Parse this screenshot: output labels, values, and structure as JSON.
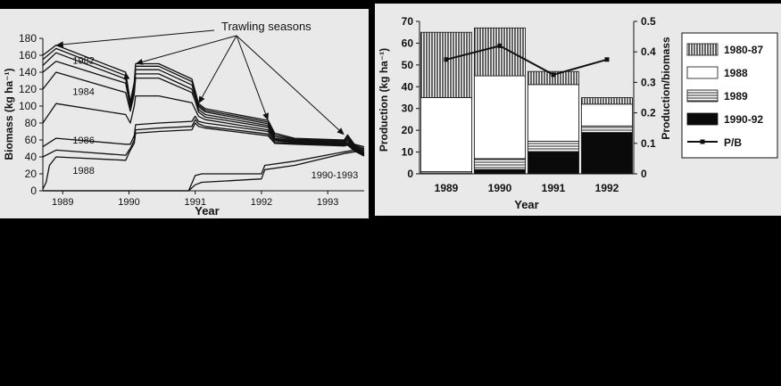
{
  "chart_data": [
    {
      "type": "line",
      "xlabel": "Year",
      "ylabel": "Biomass (kg ha⁻¹)",
      "ylim": [
        0,
        180
      ],
      "yticks": [
        0,
        20,
        40,
        60,
        80,
        100,
        120,
        140,
        160,
        180
      ],
      "xlim": [
        1988.7,
        1993.55
      ],
      "xticks": [
        {
          "value": 1989.0,
          "label": "1989"
        },
        {
          "value": 1990.0,
          "label": "1990"
        },
        {
          "value": 1991.0,
          "label": "1991"
        },
        {
          "value": 1992.0,
          "label": "1992"
        },
        {
          "value": 1993.0,
          "label": "1993"
        }
      ],
      "annotations": {
        "trawling_label": "Trawling seasons",
        "arrow_targets": [
          {
            "x": 1988.9,
            "y": 172
          },
          {
            "x": 1990.1,
            "y": 150
          },
          {
            "x": 1991.05,
            "y": 103
          },
          {
            "x": 1992.1,
            "y": 83
          },
          {
            "x": 1993.25,
            "y": 66
          }
        ],
        "extra_arrow": {
          "x": 1989.95,
          "y": 140
        }
      },
      "series": [
        {
          "name": "1982",
          "values": [
            [
              1988.7,
              160
            ],
            [
              1988.9,
              172
            ],
            [
              1989.95,
              140
            ],
            [
              1990.02,
              105
            ],
            [
              1990.08,
              128
            ],
            [
              1990.1,
              150
            ],
            [
              1990.45,
              150
            ],
            [
              1990.95,
              132
            ],
            [
              1991.0,
              118
            ],
            [
              1991.05,
              103
            ],
            [
              1991.15,
              97
            ],
            [
              1992.1,
              83
            ],
            [
              1992.2,
              68
            ],
            [
              1992.5,
              62
            ],
            [
              1993.25,
              60
            ],
            [
              1993.3,
              66
            ],
            [
              1993.4,
              55
            ],
            [
              1993.55,
              52
            ]
          ]
        },
        {
          "name": "",
          "values": [
            [
              1988.7,
              155
            ],
            [
              1988.9,
              168
            ],
            [
              1989.95,
              136
            ],
            [
              1990.02,
              103
            ],
            [
              1990.08,
              125
            ],
            [
              1990.1,
              147
            ],
            [
              1990.45,
              147
            ],
            [
              1990.95,
              129
            ],
            [
              1991.0,
              116
            ],
            [
              1991.05,
              101
            ],
            [
              1991.15,
              95
            ],
            [
              1992.1,
              81
            ],
            [
              1992.2,
              66
            ],
            [
              1992.5,
              61
            ],
            [
              1993.25,
              59
            ],
            [
              1993.3,
              64
            ],
            [
              1993.4,
              54
            ],
            [
              1993.55,
              50
            ]
          ]
        },
        {
          "name": "",
          "values": [
            [
              1988.7,
              148
            ],
            [
              1988.9,
              163
            ],
            [
              1989.95,
              132
            ],
            [
              1990.02,
              100
            ],
            [
              1990.08,
              121
            ],
            [
              1990.1,
              143
            ],
            [
              1990.45,
              143
            ],
            [
              1990.95,
              125
            ],
            [
              1991.0,
              113
            ],
            [
              1991.05,
              99
            ],
            [
              1991.15,
              93
            ],
            [
              1992.1,
              79
            ],
            [
              1992.2,
              64
            ],
            [
              1992.5,
              60
            ],
            [
              1993.25,
              58
            ],
            [
              1993.3,
              62
            ],
            [
              1993.4,
              53
            ],
            [
              1993.55,
              48
            ]
          ]
        },
        {
          "name": "",
          "values": [
            [
              1988.7,
              140
            ],
            [
              1988.9,
              153
            ],
            [
              1989.95,
              127
            ],
            [
              1990.02,
              98
            ],
            [
              1990.08,
              118
            ],
            [
              1990.1,
              138
            ],
            [
              1990.45,
              138
            ],
            [
              1990.95,
              120
            ],
            [
              1991.0,
              110
            ],
            [
              1991.05,
              96
            ],
            [
              1991.15,
              90
            ],
            [
              1992.1,
              77
            ],
            [
              1992.2,
              62
            ],
            [
              1992.5,
              59
            ],
            [
              1993.25,
              57
            ],
            [
              1993.3,
              60
            ],
            [
              1993.4,
              52
            ],
            [
              1993.55,
              46
            ]
          ]
        },
        {
          "name": "1984",
          "values": [
            [
              1988.7,
              120
            ],
            [
              1988.9,
              140
            ],
            [
              1989.95,
              116
            ],
            [
              1990.02,
              94
            ],
            [
              1990.08,
              114
            ],
            [
              1990.1,
              133
            ],
            [
              1990.45,
              133
            ],
            [
              1990.95,
              116
            ],
            [
              1991.0,
              106
            ],
            [
              1991.05,
              93
            ],
            [
              1991.15,
              87
            ],
            [
              1992.1,
              75
            ],
            [
              1992.2,
              61
            ],
            [
              1992.5,
              58
            ],
            [
              1993.25,
              56
            ],
            [
              1993.3,
              58
            ],
            [
              1993.4,
              51
            ],
            [
              1993.55,
              45
            ]
          ]
        },
        {
          "name": "",
          "values": [
            [
              1988.7,
              80
            ],
            [
              1988.9,
              103
            ],
            [
              1989.95,
              90
            ],
            [
              1990.02,
              80
            ],
            [
              1990.08,
              100
            ],
            [
              1990.1,
              112
            ],
            [
              1990.45,
              112
            ],
            [
              1990.95,
              104
            ],
            [
              1991.0,
              96
            ],
            [
              1991.05,
              88
            ],
            [
              1991.15,
              84
            ],
            [
              1992.1,
              72
            ],
            [
              1992.2,
              60
            ],
            [
              1992.5,
              57
            ],
            [
              1993.25,
              55
            ],
            [
              1993.3,
              56
            ],
            [
              1993.4,
              50
            ],
            [
              1993.55,
              44
            ]
          ]
        },
        {
          "name": "1986",
          "values": [
            [
              1988.7,
              52
            ],
            [
              1988.9,
              62
            ],
            [
              1989.95,
              55
            ],
            [
              1990.02,
              55
            ],
            [
              1990.08,
              65
            ],
            [
              1990.1,
              78
            ],
            [
              1990.45,
              80
            ],
            [
              1990.95,
              82
            ],
            [
              1991.0,
              88
            ],
            [
              1991.05,
              82
            ],
            [
              1991.15,
              80
            ],
            [
              1992.1,
              70
            ],
            [
              1992.2,
              59
            ],
            [
              1992.5,
              57
            ],
            [
              1993.25,
              55
            ],
            [
              1993.3,
              56
            ],
            [
              1993.4,
              49
            ],
            [
              1993.55,
              43
            ]
          ]
        },
        {
          "name": "",
          "values": [
            [
              1988.7,
              40
            ],
            [
              1988.9,
              48
            ],
            [
              1989.95,
              42
            ],
            [
              1990.02,
              50
            ],
            [
              1990.08,
              60
            ],
            [
              1990.1,
              72
            ],
            [
              1990.45,
              74
            ],
            [
              1990.95,
              76
            ],
            [
              1991.0,
              84
            ],
            [
              1991.05,
              79
            ],
            [
              1991.15,
              76
            ],
            [
              1992.1,
              67
            ],
            [
              1992.2,
              57
            ],
            [
              1992.5,
              56
            ],
            [
              1993.25,
              54
            ],
            [
              1993.3,
              55
            ],
            [
              1993.4,
              48
            ],
            [
              1993.55,
              42
            ]
          ]
        },
        {
          "name": "1988",
          "values": [
            [
              1988.7,
              2
            ],
            [
              1988.75,
              10
            ],
            [
              1988.8,
              30
            ],
            [
              1988.9,
              40
            ],
            [
              1989.95,
              36
            ],
            [
              1990.02,
              48
            ],
            [
              1990.08,
              56
            ],
            [
              1990.1,
              68
            ],
            [
              1990.45,
              70
            ],
            [
              1990.95,
              72
            ],
            [
              1991.0,
              80
            ],
            [
              1991.05,
              76
            ],
            [
              1991.15,
              74
            ],
            [
              1992.1,
              65
            ],
            [
              1992.2,
              56
            ],
            [
              1992.5,
              55
            ],
            [
              1993.25,
              53
            ],
            [
              1993.3,
              54
            ],
            [
              1993.4,
              47
            ],
            [
              1993.55,
              41
            ]
          ]
        },
        {
          "name": "1990-1993",
          "values": [
            [
              1988.7,
              0
            ],
            [
              1990.0,
              0
            ],
            [
              1990.5,
              0
            ],
            [
              1990.9,
              0
            ],
            [
              1991.0,
              7
            ],
            [
              1991.1,
              10
            ],
            [
              1992.0,
              14
            ],
            [
              1992.05,
              25
            ],
            [
              1992.5,
              30
            ],
            [
              1993.25,
              44
            ],
            [
              1993.4,
              46
            ],
            [
              1993.55,
              48
            ]
          ]
        },
        {
          "name": "",
          "values": [
            [
              1988.7,
              0
            ],
            [
              1990.0,
              0
            ],
            [
              1990.5,
              0
            ],
            [
              1990.9,
              0
            ],
            [
              1991.0,
              18
            ],
            [
              1991.1,
              20
            ],
            [
              1992.0,
              20
            ],
            [
              1992.05,
              30
            ],
            [
              1992.5,
              35
            ],
            [
              1993.25,
              46
            ],
            [
              1993.4,
              48
            ],
            [
              1993.55,
              50
            ]
          ]
        }
      ],
      "curve_labels": [
        {
          "series": 0,
          "text": "1982",
          "x": 1989.15,
          "y": 150
        },
        {
          "series": 4,
          "text": "1984",
          "x": 1989.15,
          "y": 113
        },
        {
          "series": 6,
          "text": "1986",
          "x": 1989.15,
          "y": 56
        },
        {
          "series": 8,
          "text": "1988",
          "x": 1989.15,
          "y": 20
        },
        {
          "series": 9,
          "text": "1990-1993",
          "x": 1992.75,
          "y": 15
        }
      ]
    },
    {
      "type": "bar",
      "stacked": true,
      "xlabel": "Year",
      "ylabel": "Production (kg ha⁻¹)",
      "y2label": "Production/biomass",
      "categories": [
        "1989",
        "1990",
        "1991",
        "1992"
      ],
      "ylim": [
        0,
        70
      ],
      "yticks": [
        0,
        10,
        20,
        30,
        40,
        50,
        60,
        70
      ],
      "y2lim": [
        0,
        0.5
      ],
      "y2ticks": [
        0,
        0.1,
        0.2,
        0.3,
        0.4,
        0.5
      ],
      "series": [
        {
          "name": "1990-92",
          "pattern": "black",
          "values": [
            0,
            2,
            10,
            19
          ]
        },
        {
          "name": "1989",
          "pattern": "horizontal-lines",
          "values": [
            1,
            5,
            5,
            3
          ]
        },
        {
          "name": "1988",
          "pattern": "white",
          "values": [
            34,
            38,
            26,
            10
          ]
        },
        {
          "name": "1980-87",
          "pattern": "vertical-lines",
          "values": [
            30,
            22,
            6,
            3
          ]
        }
      ],
      "line_series": {
        "name": "P/B",
        "values": [
          0.375,
          0.42,
          0.325,
          0.375
        ]
      },
      "legend": {
        "placement": "right",
        "items": [
          "1980-87",
          "1988",
          "1989",
          "1990-92",
          "P/B"
        ]
      }
    }
  ]
}
